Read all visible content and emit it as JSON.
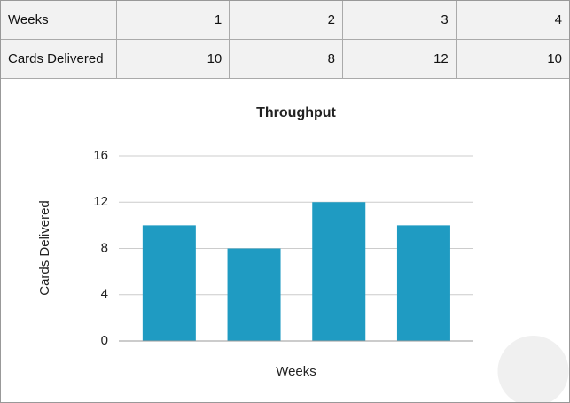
{
  "table": {
    "rows": [
      [
        "Weeks",
        "1",
        "2",
        "3",
        "4"
      ],
      [
        "Cards Delivered",
        "10",
        "8",
        "12",
        "10"
      ]
    ]
  },
  "chart_data": {
    "type": "bar",
    "title": "Throughput",
    "x_label": "Weeks",
    "y_label": "Cards Delivered",
    "values": [
      10,
      8,
      12,
      10
    ],
    "color": "#1f9bc2",
    "ylim": [
      0,
      16
    ],
    "yticks": [
      0,
      4,
      8,
      12,
      16
    ],
    "grid": true
  }
}
